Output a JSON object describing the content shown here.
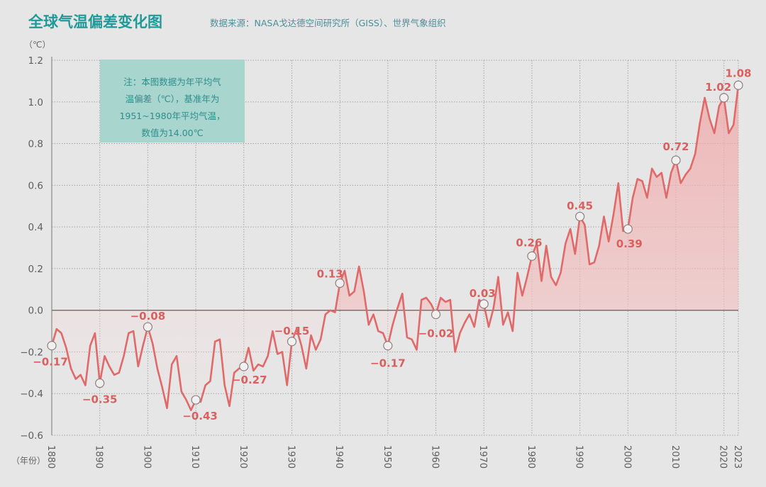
{
  "header": {
    "title": "全球气温偏差变化图",
    "source": "数据来源：NASA戈达德空间研究所（GISS）、世界气象组织"
  },
  "note": {
    "lines": [
      "注：本图数据为年平均气",
      "温偏差（℃），基准年为",
      "1951~1980年平均气温，",
      "数值为14.00℃"
    ]
  },
  "colors": {
    "title": "#1f9a9a",
    "line": "#e06a6a",
    "label": "#d9605e",
    "note_bg": "#a8d5cd",
    "background": "#e6e6e6"
  },
  "chart_data": {
    "type": "area",
    "title": "全球气温偏差变化图",
    "ylabel": "（℃）",
    "xlabel": "（年份）",
    "ylim": [
      -0.6,
      1.2
    ],
    "xlim": [
      1880,
      2023
    ],
    "grid": true,
    "yticks": [
      "1.2",
      "1.0",
      "0.8",
      "0.6",
      "0.4",
      "0.2",
      "0.0",
      "−0.2",
      "−0.4",
      "−0.6"
    ],
    "ytick_values": [
      1.2,
      1.0,
      0.8,
      0.6,
      0.4,
      0.2,
      0.0,
      -0.2,
      -0.4,
      -0.6
    ],
    "xticks": [
      "1880",
      "1890",
      "1900",
      "1910",
      "1920",
      "1930",
      "1940",
      "1950",
      "1960",
      "1970",
      "1980",
      "1990",
      "2000",
      "2010",
      "2020",
      "2023"
    ],
    "xtick_values": [
      1880,
      1890,
      1900,
      1910,
      1920,
      1930,
      1940,
      1950,
      1960,
      1970,
      1980,
      1990,
      2000,
      2010,
      2020,
      2023
    ],
    "x_start": 1880,
    "values": [
      -0.17,
      -0.09,
      -0.11,
      -0.18,
      -0.28,
      -0.33,
      -0.31,
      -0.36,
      -0.17,
      -0.11,
      -0.35,
      -0.22,
      -0.27,
      -0.31,
      -0.3,
      -0.22,
      -0.11,
      -0.1,
      -0.27,
      -0.17,
      -0.08,
      -0.16,
      -0.28,
      -0.37,
      -0.47,
      -0.26,
      -0.22,
      -0.39,
      -0.43,
      -0.48,
      -0.43,
      -0.44,
      -0.36,
      -0.34,
      -0.15,
      -0.14,
      -0.36,
      -0.46,
      -0.3,
      -0.28,
      -0.27,
      -0.18,
      -0.29,
      -0.26,
      -0.27,
      -0.22,
      -0.1,
      -0.21,
      -0.2,
      -0.36,
      -0.15,
      -0.09,
      -0.17,
      -0.28,
      -0.12,
      -0.19,
      -0.14,
      -0.02,
      0.0,
      -0.01,
      0.13,
      0.19,
      0.07,
      0.09,
      0.21,
      0.09,
      -0.07,
      -0.02,
      -0.1,
      -0.11,
      -0.17,
      -0.07,
      0.01,
      0.08,
      -0.13,
      -0.14,
      -0.19,
      0.05,
      0.06,
      0.03,
      -0.02,
      0.06,
      0.04,
      0.05,
      -0.2,
      -0.11,
      -0.06,
      -0.02,
      -0.08,
      0.05,
      0.03,
      -0.08,
      0.01,
      0.16,
      -0.07,
      -0.01,
      -0.1,
      0.18,
      0.07,
      0.16,
      0.26,
      0.32,
      0.14,
      0.31,
      0.16,
      0.12,
      0.18,
      0.32,
      0.39,
      0.27,
      0.45,
      0.41,
      0.22,
      0.23,
      0.31,
      0.45,
      0.33,
      0.46,
      0.61,
      0.38,
      0.39,
      0.54,
      0.63,
      0.62,
      0.54,
      0.68,
      0.64,
      0.66,
      0.54,
      0.66,
      0.72,
      0.61,
      0.65,
      0.68,
      0.75,
      0.9,
      1.02,
      0.92,
      0.85,
      0.98,
      1.02,
      0.85,
      0.89,
      1.08
    ],
    "annotations": [
      {
        "year": 1880,
        "value": -0.17,
        "label": "−0.17"
      },
      {
        "year": 1890,
        "value": -0.35,
        "label": "−0.35"
      },
      {
        "year": 1900,
        "value": -0.08,
        "label": "−0.08"
      },
      {
        "year": 1910,
        "value": -0.43,
        "label": "−0.43"
      },
      {
        "year": 1920,
        "value": -0.27,
        "label": "−0.27"
      },
      {
        "year": 1930,
        "value": -0.15,
        "label": "−0.15"
      },
      {
        "year": 1940,
        "value": 0.13,
        "label": "0.13"
      },
      {
        "year": 1950,
        "value": -0.17,
        "label": "−0.17"
      },
      {
        "year": 1960,
        "value": -0.02,
        "label": "−0.02"
      },
      {
        "year": 1970,
        "value": 0.03,
        "label": "0.03"
      },
      {
        "year": 1980,
        "value": 0.26,
        "label": "0.26"
      },
      {
        "year": 1990,
        "value": 0.45,
        "label": "0.45"
      },
      {
        "year": 2000,
        "value": 0.39,
        "label": "0.39"
      },
      {
        "year": 2010,
        "value": 0.72,
        "label": "0.72"
      },
      {
        "year": 2020,
        "value": 1.02,
        "label": "1.02"
      },
      {
        "year": 2023,
        "value": 1.08,
        "label": "1.08"
      }
    ]
  }
}
